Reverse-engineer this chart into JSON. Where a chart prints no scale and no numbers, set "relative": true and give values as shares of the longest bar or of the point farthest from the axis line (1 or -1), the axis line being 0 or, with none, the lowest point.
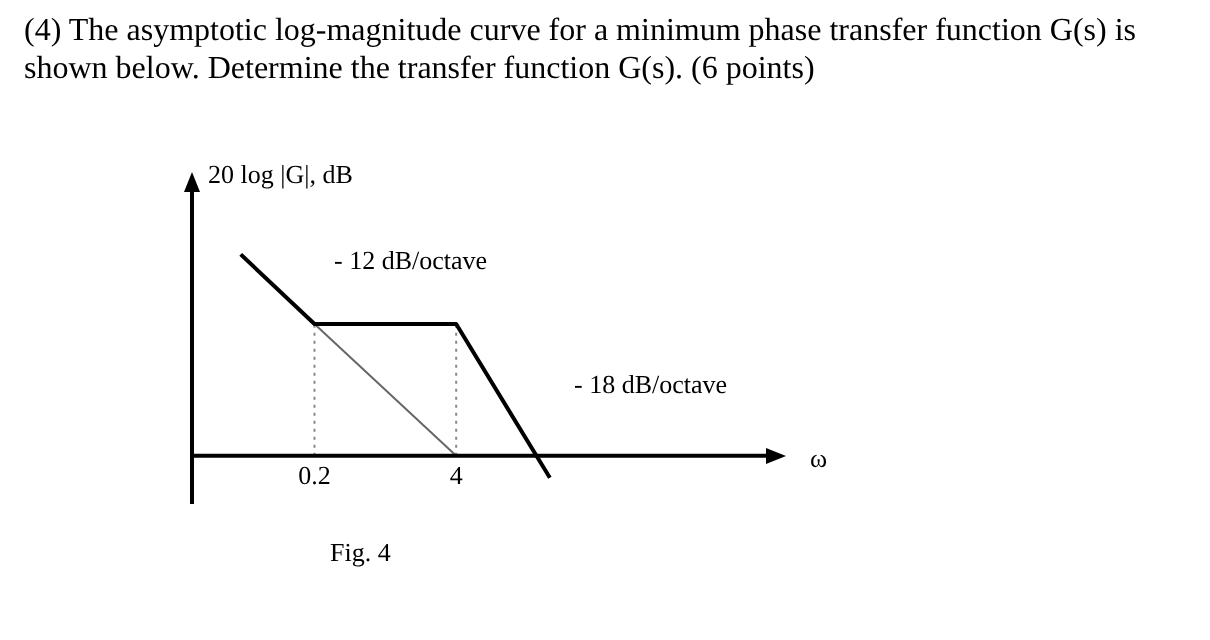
{
  "chart_data": {
    "type": "line",
    "title": "(4) The asymptotic log-magnitude curve for a minimum phase transfer function G(s) is shown below. Determine the transfer function G(s). (6 points)",
    "xlabel": "ω",
    "ylabel": "20 log |G|, dB",
    "relative": true,
    "log": "x",
    "xlim": [
      0.015,
      2800
    ],
    "xticks": [
      0.2,
      4
    ],
    "tick_labels": "x",
    "grid": false,
    "legend": false,
    "marker": "none",
    "series": [
      {
        "color": "#000000",
        "x": [
          0.042,
          0.2,
          4,
          29
        ],
        "values": [
          1,
          0.654,
          0.654,
          -0.11
        ],
        "line_style": "solid"
      },
      {
        "color": "#666666",
        "x": [
          0.2,
          4
        ],
        "values": [
          0.654,
          0
        ],
        "line_style": "solid"
      },
      {
        "color": "#888888",
        "x": [
          0.2,
          0.2
        ],
        "values": [
          0,
          0.654
        ],
        "line_style": "dotted"
      },
      {
        "color": "#888888",
        "x": [
          4,
          4
        ],
        "values": [
          0,
          0.654
        ],
        "line_style": "dotted"
      }
    ],
    "annotations": [
      "- 12 dB/octave",
      "- 18 dB/octave",
      "Fig. 4"
    ]
  }
}
